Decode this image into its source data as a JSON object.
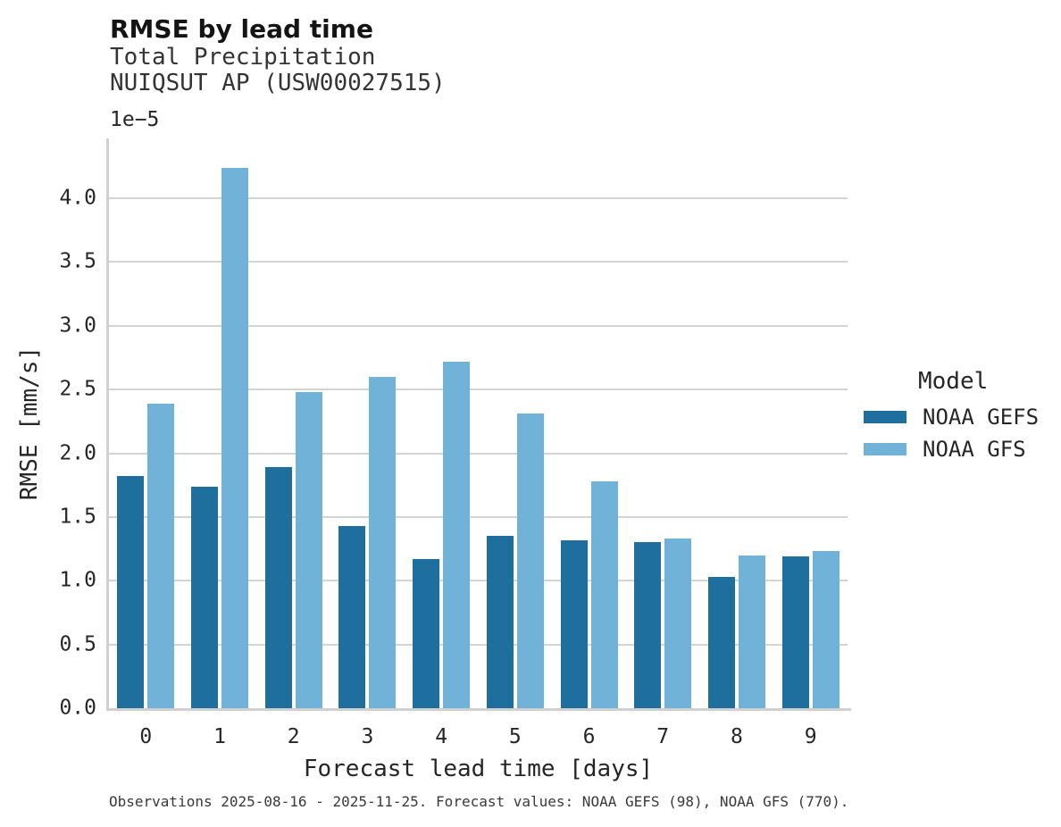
{
  "header": {
    "title": "RMSE by lead time",
    "subtitle_variable": "Total Precipitation",
    "subtitle_station": "NUIQSUT AP (USW00027515)",
    "y_offset_label": "1e−5"
  },
  "caption": "Observations 2025-08-16 - 2025-11-25. Forecast values: NOAA GEFS (98), NOAA GFS (770).",
  "legend": {
    "title": "Model"
  },
  "colors": {
    "gefs_dark_blue": "#1e6f9e",
    "gfs_light_blue": "#71b2d9",
    "gridline": "#d4d4d4",
    "spine": "#d0d0d0",
    "title_text": "#141414",
    "tick_text": "#262626"
  },
  "chart_data": {
    "type": "bar",
    "title": "RMSE by lead time",
    "subtitle": "Total Precipitation — NUIQSUT AP (USW00027515)",
    "xlabel": "Forecast lead time [days]",
    "ylabel": "RMSE [mm/s]",
    "y_scale_offset": "1e-5",
    "categories": [
      "0",
      "1",
      "2",
      "3",
      "4",
      "5",
      "6",
      "7",
      "8",
      "9"
    ],
    "series": [
      {
        "name": "NOAA GEFS",
        "color": "#1e6f9e",
        "values": [
          1.82,
          1.74,
          1.89,
          1.43,
          1.17,
          1.35,
          1.32,
          1.3,
          1.03,
          1.19
        ]
      },
      {
        "name": "NOAA GFS",
        "color": "#71b2d9",
        "values": [
          2.39,
          4.24,
          2.48,
          2.6,
          2.72,
          2.31,
          1.78,
          1.33,
          1.2,
          1.23
        ]
      }
    ],
    "values_unit": "1e-5 mm/s",
    "ylim": [
      0,
      4.47
    ],
    "yticks": [
      0.0,
      0.5,
      1.0,
      1.5,
      2.0,
      2.5,
      3.0,
      3.5,
      4.0
    ],
    "grid": "horizontal",
    "legend_position": "center-right"
  }
}
